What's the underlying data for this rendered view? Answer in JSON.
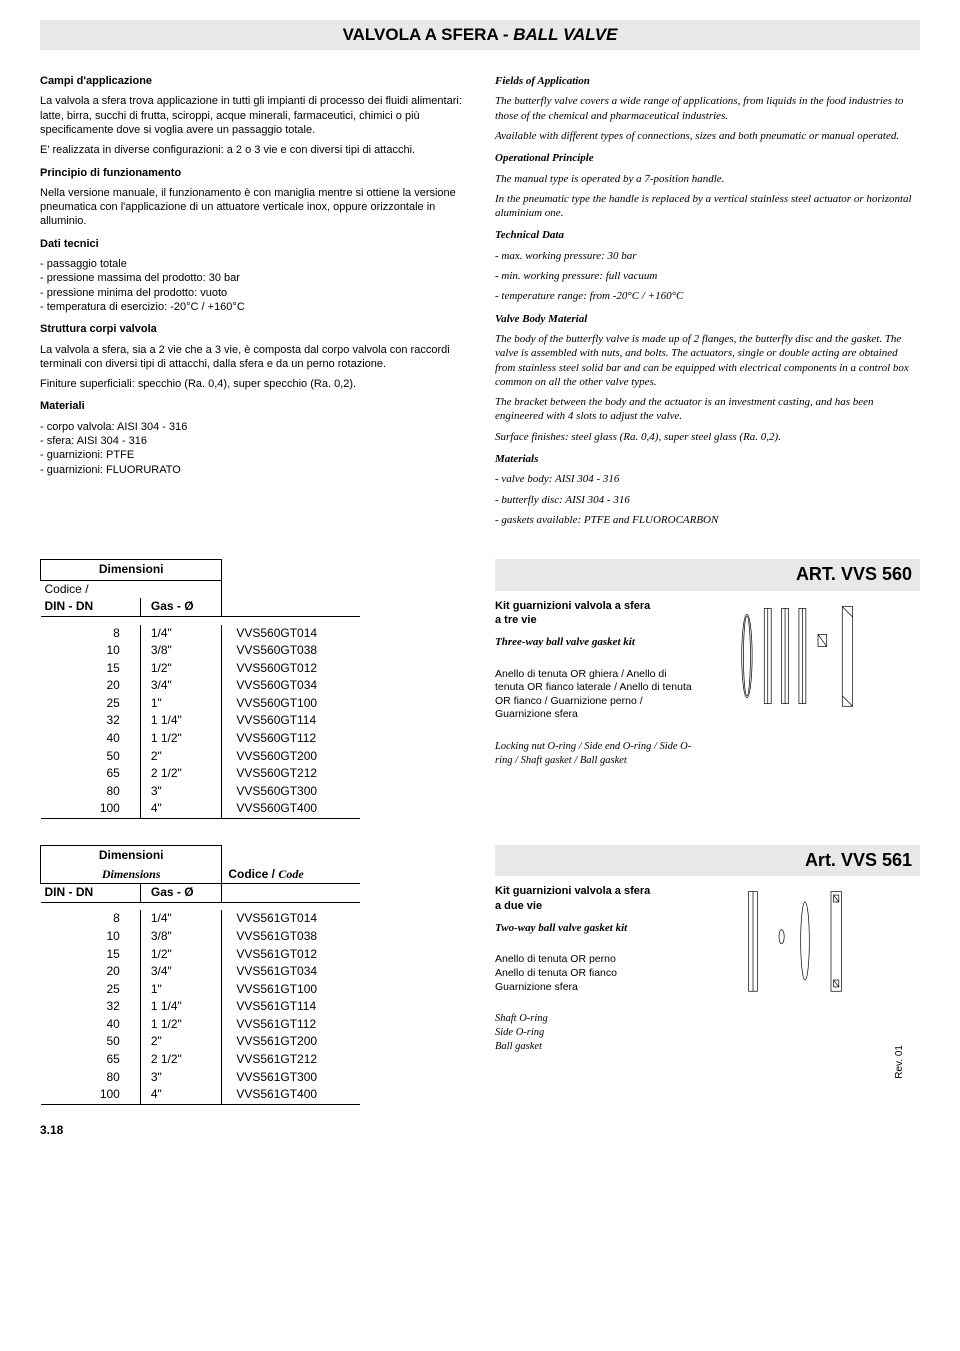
{
  "title": {
    "main": "VALVOLA A SFERA - ",
    "italic": "BALL VALVE"
  },
  "left_col": {
    "s1": {
      "h": "Campi d'applicazione",
      "p": "La valvola a sfera trova applicazione in tutti gli impianti di processo dei fluidi alimentari: latte, birra, succhi di frutta, sciroppi, acque minerali, farmaceutici, chimici o più specificamente dove si voglia avere un passaggio totale.",
      "p2": "E' realizzata in diverse configurazioni: a 2 o 3 vie e con diversi tipi di attacchi."
    },
    "s2": {
      "h": "Principio di funzionamento",
      "p": "Nella versione manuale, il funzionamento è con maniglia mentre si ottiene la versione pneumatica con l'applicazione di un attuatore verticale inox, oppure orizzontale in alluminio."
    },
    "s3": {
      "h": "Dati tecnici",
      "items": [
        "passaggio totale",
        "pressione massima del prodotto: 30 bar",
        "pressione minima del prodotto: vuoto",
        "temperatura di esercizio: -20°C / +160°C"
      ]
    },
    "s4": {
      "h": "Struttura corpi valvola",
      "p": "La valvola a sfera, sia a 2 vie che a 3 vie, è composta dal corpo valvola con raccordi terminali con diversi tipi di attacchi, dalla sfera e da un perno rotazione.",
      "p2": "Finiture superficiali: specchio (Ra. 0,4), super specchio (Ra. 0,2)."
    },
    "s5": {
      "h": "Materiali",
      "items": [
        "corpo valvola: AISI 304 - 316",
        "sfera: AISI 304 - 316",
        "guarnizioni: PTFE",
        "guarnizioni: FLUORURATO"
      ]
    }
  },
  "right_col": {
    "s1": {
      "h": "Fields of Application",
      "p": "The butterfly valve covers a wide range of applications, from liquids in the food industries to those of the chemical and pharmaceutical industries.",
      "p2": "Available with different types of connections, sizes and both pneumatic or manual operated."
    },
    "s2": {
      "h": "Operational Principle",
      "p": "The manual type is operated by a 7-position handle.",
      "p2": "In the pneumatic type the handle is replaced by a vertical stainless steel actuator or horizontal aluminium one."
    },
    "s3": {
      "h": "Technical Data",
      "items": [
        "max. working pressure: 30 bar",
        "min. working pressure: full vacuum",
        "temperature range: from -20°C / +160°C"
      ]
    },
    "s4": {
      "h": "Valve Body Material",
      "p": "The body of the butterfly valve is made up of 2 flanges, the butterfly disc and the gasket. The valve is assembled with nuts, and bolts. The actuators, single or double acting are obtained from stainless steel solid bar and can be equipped with electrical components in a control box common on all the other valve types.",
      "p2": "The bracket between the body and the actuator is an investment casting, and has been engineered with 4 slots to adjust the valve.",
      "p3": "Surface finishes: steel glass (Ra. 0,4), super steel glass (Ra. 0,2)."
    },
    "s5": {
      "h": "Materials",
      "items": [
        "valve body: AISI 304 - 316",
        "butterfly disc: AISI 304 - 316",
        "gaskets available: PTFE and FLUOROCARBON"
      ]
    }
  },
  "art560": {
    "header": "ART. VVS 560",
    "kit_title": "Kit guarnizioni valvola a sfera\na tre vie",
    "kit_title_it": "Three-way ball valve gasket kit",
    "kit_desc": "Anello di tenuta OR ghiera / Anello di tenuta OR fianco laterale / Anello di tenuta OR fianco / Guarnizione perno / Guarnizione sfera",
    "kit_desc_it": "Locking nut O-ring / Side end O-ring / Side O-ring / Shaft gasket / Ball gasket",
    "table": {
      "dim_label": "Dimensioni",
      "codice_label": "Codice /",
      "col1": "DIN - DN",
      "col2": "Gas - Ø",
      "rows": [
        {
          "dn": "8",
          "gas": "1/4\"",
          "code": "VVS560GT014"
        },
        {
          "dn": "10",
          "gas": "3/8\"",
          "code": "VVS560GT038"
        },
        {
          "dn": "15",
          "gas": "1/2\"",
          "code": "VVS560GT012"
        },
        {
          "dn": "20",
          "gas": "3/4\"",
          "code": "VVS560GT034"
        },
        {
          "dn": "25",
          "gas": "1\"",
          "code": "VVS560GT100"
        },
        {
          "dn": "32",
          "gas": "1 1/4\"",
          "code": "VVS560GT114"
        },
        {
          "dn": "40",
          "gas": "1 1/2\"",
          "code": "VVS560GT112"
        },
        {
          "dn": "50",
          "gas": "2\"",
          "code": "VVS560GT200"
        },
        {
          "dn": "65",
          "gas": "2 1/2\"",
          "code": "VVS560GT212"
        },
        {
          "dn": "80",
          "gas": "3\"",
          "code": "VVS560GT300"
        },
        {
          "dn": "100",
          "gas": "4\"",
          "code": "VVS560GT400"
        }
      ]
    }
  },
  "art561": {
    "header": "Art. VVS 561",
    "kit_title": "Kit guarnizioni valvola a sfera\na due vie",
    "kit_title_it": "Two-way ball valve gasket kit",
    "kit_desc": "Anello di tenuta OR perno\nAnello di tenuta OR fianco\nGuarnizione sfera",
    "kit_desc_it": "Shaft O-ring\nSide O-ring\nBall gasket",
    "table": {
      "dim_label": "Dimensioni",
      "dim_label_it": "Dimensions",
      "codice_label": "Codice / ",
      "codice_label_it": "Code",
      "col1": "DIN - DN",
      "col2": "Gas - Ø",
      "rows": [
        {
          "dn": "8",
          "gas": "1/4\"",
          "code": "VVS561GT014"
        },
        {
          "dn": "10",
          "gas": "3/8\"",
          "code": "VVS561GT038"
        },
        {
          "dn": "15",
          "gas": "1/2\"",
          "code": "VVS561GT012"
        },
        {
          "dn": "20",
          "gas": "3/4\"",
          "code": "VVS561GT034"
        },
        {
          "dn": "25",
          "gas": "1\"",
          "code": "VVS561GT100"
        },
        {
          "dn": "32",
          "gas": "1 1/4\"",
          "code": "VVS561GT114"
        },
        {
          "dn": "40",
          "gas": "1 1/2\"",
          "code": "VVS561GT112"
        },
        {
          "dn": "50",
          "gas": "2\"",
          "code": "VVS561GT200"
        },
        {
          "dn": "65",
          "gas": "2 1/2\"",
          "code": "VVS561GT212"
        },
        {
          "dn": "80",
          "gas": "3\"",
          "code": "VVS561GT300"
        },
        {
          "dn": "100",
          "gas": "4\"",
          "code": "VVS561GT400"
        }
      ]
    }
  },
  "page_num": "3.18",
  "rev": "Rev. 01"
}
